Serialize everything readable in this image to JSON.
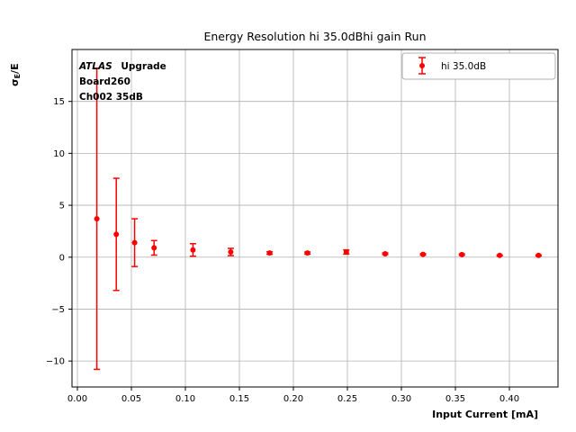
{
  "title": "Energy Resolution hi 35.0dBhi gain Run",
  "annotation": {
    "atlas": "ATLAS",
    "line1_rest": "Upgrade",
    "line2": "Board260",
    "line3": "Ch002 35dB"
  },
  "legend": {
    "label": "hi 35.0dB"
  },
  "colors": {
    "series": "#ff0000",
    "grid": "#b0b0b0",
    "axis": "#000000",
    "legend_border": "#b0b0b0"
  },
  "chart_data": {
    "type": "scatter",
    "title": "Energy Resolution hi 35.0dBhi gain Run",
    "xlabel": "Input Current [mA]",
    "ylabel": "σE/E",
    "ylabel_parts": {
      "base": "σ",
      "sub": "E",
      "rest": "/E"
    },
    "xlim": [
      -0.005,
      0.445
    ],
    "ylim": [
      -12.5,
      20
    ],
    "xticks": [
      0.0,
      0.05,
      0.1,
      0.15,
      0.2,
      0.25,
      0.3,
      0.35,
      0.4
    ],
    "xtick_labels": [
      "0.00",
      "0.05",
      "0.10",
      "0.15",
      "0.20",
      "0.25",
      "0.30",
      "0.35",
      "0.40"
    ],
    "yticks": [
      -10,
      -5,
      0,
      5,
      10,
      15
    ],
    "ytick_labels": [
      "−10",
      "−5",
      "0",
      "5",
      "10",
      "15"
    ],
    "grid": true,
    "legend_position": "upper right",
    "series": [
      {
        "name": "hi 35.0dB",
        "color": "#ff0000",
        "marker": "circle-with-errorbars",
        "x": [
          0.018,
          0.036,
          0.053,
          0.071,
          0.107,
          0.142,
          0.178,
          0.213,
          0.249,
          0.285,
          0.32,
          0.356,
          0.391,
          0.427
        ],
        "y": [
          3.7,
          2.2,
          1.4,
          0.9,
          0.7,
          0.5,
          0.4,
          0.4,
          0.5,
          0.33,
          0.27,
          0.25,
          0.17,
          0.17
        ],
        "yerr": [
          14.5,
          5.4,
          2.3,
          0.7,
          0.6,
          0.35,
          0.12,
          0.1,
          0.2,
          0.08,
          0.07,
          0.07,
          0.05,
          0.05
        ]
      }
    ]
  }
}
